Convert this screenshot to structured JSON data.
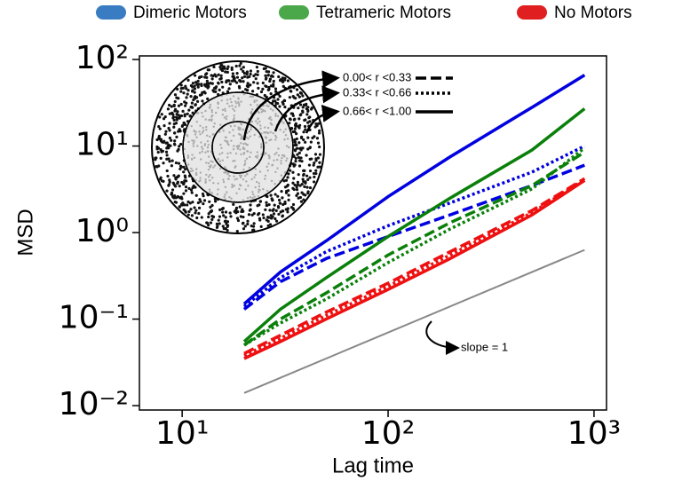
{
  "chart_data": {
    "type": "line",
    "xlabel": "Lag time",
    "ylabel": "MSD",
    "xscale": "log",
    "yscale": "log",
    "xlim": [
      6.2,
      1150
    ],
    "ylim": [
      0.0089,
      110
    ],
    "xticks": [
      {
        "value": 10,
        "label": "10¹"
      },
      {
        "value": 100,
        "label": "10²"
      },
      {
        "value": 1000,
        "label": "10³"
      }
    ],
    "yticks": [
      {
        "value": 0.01,
        "label": "10⁻²"
      },
      {
        "value": 0.1,
        "label": "10⁻¹"
      },
      {
        "value": 1,
        "label": "10⁰"
      },
      {
        "value": 10,
        "label": "10¹"
      },
      {
        "value": 100,
        "label": "10²"
      }
    ],
    "legend": [
      {
        "label": "Dimeric Motors",
        "color": "#3a7cc2"
      },
      {
        "label": "Tetrameric Motors",
        "color": "#4aa84a"
      },
      {
        "label": "No Motors",
        "color": "#e02020"
      }
    ],
    "inset_legend": [
      {
        "label": "0.00< r <0.33",
        "dash": "dashed"
      },
      {
        "label": "0.33< r <0.66",
        "dash": "dotted"
      },
      {
        "label": "0.66< r <1.00",
        "dash": "solid"
      }
    ],
    "x": [
      20,
      30,
      50,
      100,
      200,
      500,
      900
    ],
    "series": [
      {
        "color": "#0000e0",
        "dash": "solid",
        "values": [
          0.15,
          0.35,
          0.8,
          2.6,
          7.5,
          28,
          66
        ]
      },
      {
        "color": "#0000e0",
        "dash": "dashed",
        "values": [
          0.13,
          0.27,
          0.5,
          0.9,
          1.6,
          3.5,
          6
        ]
      },
      {
        "color": "#0000e0",
        "dash": "dotted",
        "values": [
          0.14,
          0.3,
          0.6,
          1.2,
          2.2,
          5,
          10
        ]
      },
      {
        "color": "#0a800a",
        "dash": "solid",
        "values": [
          0.055,
          0.13,
          0.3,
          0.9,
          2.5,
          9,
          27
        ]
      },
      {
        "color": "#0a800a",
        "dash": "dashed",
        "values": [
          0.05,
          0.1,
          0.2,
          0.55,
          1.3,
          3.5,
          8.5
        ]
      },
      {
        "color": "#0a800a",
        "dash": "dotted",
        "values": [
          0.05,
          0.09,
          0.17,
          0.45,
          1.1,
          3.2,
          9.5
        ]
      },
      {
        "color": "#ee1010",
        "dash": "solid",
        "values": [
          0.035,
          0.055,
          0.1,
          0.22,
          0.5,
          1.6,
          4
        ]
      },
      {
        "color": "#ee1010",
        "dash": "dashed",
        "values": [
          0.04,
          0.065,
          0.12,
          0.26,
          0.6,
          1.8,
          4.2
        ]
      },
      {
        "color": "#ee1010",
        "dash": "dotted",
        "values": [
          0.038,
          0.06,
          0.11,
          0.24,
          0.55,
          1.7,
          4.1
        ]
      }
    ],
    "reference": {
      "x": [
        20,
        900
      ],
      "values": [
        0.014,
        0.63
      ],
      "color": "#888888"
    },
    "annotation": "slope = 1"
  }
}
